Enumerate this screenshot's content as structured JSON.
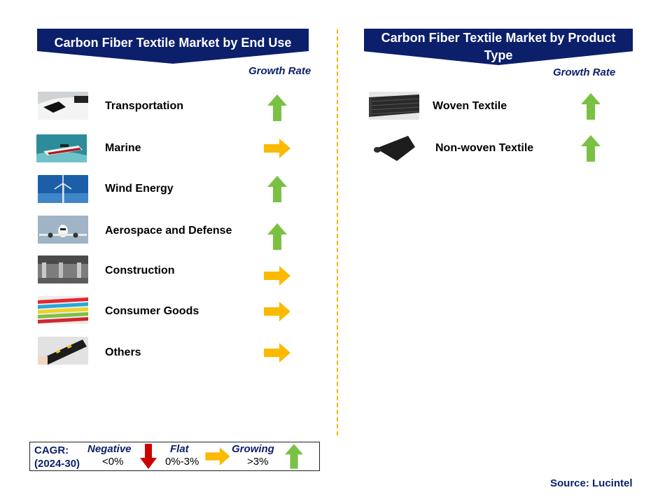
{
  "left_panel": {
    "title": "Carbon Fiber Textile Market by End Use",
    "growth_header": "Growth Rate",
    "rows": [
      {
        "label": "Transportation",
        "trend": "up"
      },
      {
        "label": "Marine",
        "trend": "flat"
      },
      {
        "label": "Wind Energy",
        "trend": "up"
      },
      {
        "label": "Aerospace and Defense",
        "trend": "up"
      },
      {
        "label": "Construction",
        "trend": "flat"
      },
      {
        "label": "Consumer Goods",
        "trend": "flat"
      },
      {
        "label": "Others",
        "trend": "flat"
      }
    ]
  },
  "right_panel": {
    "title_line1": "Carbon Fiber Textile Market by Product",
    "title_line2": "Type",
    "growth_header": "Growth Rate",
    "rows": [
      {
        "label": "Woven Textile",
        "trend": "up"
      },
      {
        "label": "Non-woven Textile",
        "trend": "up"
      }
    ]
  },
  "legend": {
    "cagr_label": "CAGR:",
    "period": "(2024-30)",
    "negative_label": "Negative",
    "negative_range": "<0%",
    "flat_label": "Flat",
    "flat_range": "0%-3%",
    "growing_label": "Growing",
    "growing_range": ">3%"
  },
  "source": "Source: Lucintel",
  "colors": {
    "banner": "#0b1f6b",
    "growing_arrow": "#7ac143",
    "flat_arrow": "#fbb900",
    "negative_arrow": "#cc0000",
    "divider": "#f5b400"
  }
}
